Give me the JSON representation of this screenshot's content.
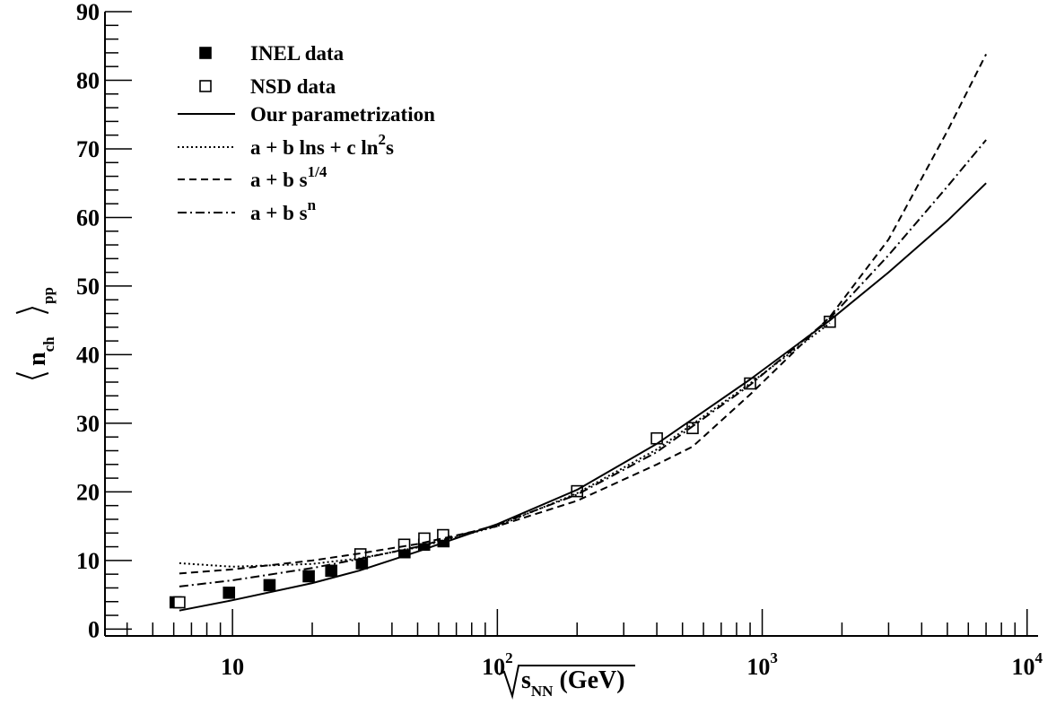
{
  "chart_data": {
    "type": "scatter",
    "x_scale": "log",
    "xlim": [
      3.3,
      11000
    ],
    "ylim": [
      -1,
      90
    ],
    "xlabel": {
      "main": "s",
      "sub": "NN",
      "unit": "(GeV)"
    },
    "ylabel": {
      "main": "n",
      "sub1": "ch",
      "sub2": "pp"
    },
    "x_ticks": [
      {
        "value": 10,
        "base": "10",
        "exp": ""
      },
      {
        "value": 100,
        "base": "10",
        "exp": "2"
      },
      {
        "value": 1000,
        "base": "10",
        "exp": "3"
      },
      {
        "value": 10000,
        "base": "10",
        "exp": "4"
      }
    ],
    "y_ticks": [
      0,
      10,
      20,
      30,
      40,
      50,
      60,
      70,
      80,
      90
    ],
    "grid": false,
    "legend_position": "top-left",
    "series": [
      {
        "name": "INEL data",
        "kind": "points",
        "marker": "filled-square",
        "x": [
          6.1,
          9.7,
          13.8,
          19.4,
          23.6,
          30.8,
          44.6,
          52.9,
          62.6
        ],
        "y": [
          3.9,
          5.3,
          6.4,
          7.7,
          8.5,
          9.6,
          11.2,
          12.3,
          12.8
        ]
      },
      {
        "name": "NSD data",
        "kind": "points",
        "marker": "open-square",
        "x": [
          6.3,
          30.4,
          44.5,
          53.0,
          62.4,
          200,
          400,
          546,
          900,
          1800
        ],
        "y": [
          3.9,
          10.9,
          12.3,
          13.2,
          13.7,
          20.1,
          27.8,
          29.3,
          35.8,
          44.8
        ]
      },
      {
        "name": "Our parametrization",
        "kind": "line",
        "dash": "solid",
        "x": [
          6.3,
          10,
          20,
          30,
          50,
          100,
          200,
          400,
          900,
          1800,
          3000,
          5000,
          7000
        ],
        "y": [
          2.7,
          4.2,
          6.7,
          8.5,
          11.3,
          15.3,
          20.3,
          27.0,
          36.4,
          45.0,
          52.0,
          59.5,
          65.0
        ]
      },
      {
        "name": "a + b lns + c ln",
        "name_sup": "2",
        "name_after": "s",
        "kind": "line",
        "dash": "dotted",
        "x": [
          6.3,
          10,
          20,
          30,
          50,
          100,
          200,
          400,
          900,
          1800
        ],
        "y": [
          9.6,
          9.1,
          9.5,
          10.3,
          11.9,
          15.0,
          19.8,
          26.2,
          35.8,
          44.6
        ]
      },
      {
        "name": "a + b s",
        "name_sup": "1/4",
        "kind": "line",
        "dash": "dashed",
        "x": [
          6.3,
          10,
          20,
          30,
          50,
          100,
          200,
          400,
          546,
          900,
          1800,
          3000,
          5000,
          7000
        ],
        "y": [
          8.1,
          8.7,
          10.0,
          11.0,
          12.4,
          15.0,
          18.7,
          24.0,
          26.6,
          34.2,
          45.5,
          56.8,
          72.6,
          83.8
        ]
      },
      {
        "name": "a + b s",
        "name_sup": "n",
        "kind": "line",
        "dash": "dashdot",
        "x": [
          6.3,
          10,
          20,
          30,
          50,
          100,
          200,
          400,
          900,
          1800,
          3000,
          5000,
          7000
        ],
        "y": [
          6.2,
          7.1,
          8.9,
          10.2,
          12.0,
          15.2,
          19.6,
          25.8,
          35.6,
          45.3,
          54.5,
          64.5,
          71.3
        ]
      }
    ]
  }
}
